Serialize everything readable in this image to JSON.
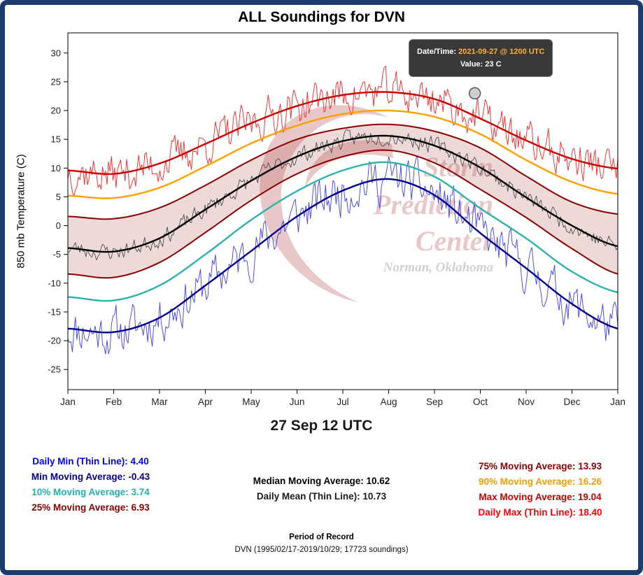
{
  "page": {
    "title": "ALL Soundings for DVN",
    "subtitle": "27 Sep 12 UTC",
    "footer": {
      "heading": "Period of Record",
      "detail": "DVN (1995/02/17-2019/10/29; 17723 soundings)"
    },
    "border_color": "#1d3c6e"
  },
  "tooltip": {
    "datetime_label": "Date/Time:",
    "datetime_value": "2021-09-27 @ 1200 UTC",
    "value_label": "Value:",
    "value_value": "23 C",
    "accent_color": "#ffaf3c",
    "background_color": "#2a2a2a"
  },
  "watermark": {
    "line1": "Storm",
    "line2": "Prediction",
    "line3": "Center",
    "line4": "Norman, Oklahoma"
  },
  "legend": {
    "left": [
      {
        "label": "Daily Min (Thin Line):",
        "value": "4.40",
        "color": "#0000ff"
      },
      {
        "label": "Min Moving Average:",
        "value": "-0.43",
        "color": "#00008b"
      },
      {
        "label": "10% Moving Average:",
        "value": "3.74",
        "color": "#20b2aa"
      },
      {
        "label": "25% Moving Average:",
        "value": "6.93",
        "color": "#8b0000"
      }
    ],
    "center": [
      {
        "label": "Median Moving Average:",
        "value": "10.62",
        "color": "#000000"
      },
      {
        "label": "Daily Mean (Thin Line):",
        "value": "10.73",
        "color": "#1a1a1a"
      }
    ],
    "right": [
      {
        "label": "75% Moving Average:",
        "value": "13.93",
        "color": "#8b0000"
      },
      {
        "label": "90% Moving Average:",
        "value": "16.26",
        "color": "#f29d00"
      },
      {
        "label": "Max Moving Average:",
        "value": "19.04",
        "color": "#cc0000"
      },
      {
        "label": "Daily Max (Thin Line):",
        "value": "18.40",
        "color": "#ff0000"
      }
    ]
  },
  "chart_data": {
    "type": "line",
    "title": "ALL Soundings for DVN",
    "xlabel": "",
    "ylabel": "850 mb Temperature (C)",
    "x_tick_labels": [
      "Jan",
      "Feb",
      "Mar",
      "Apr",
      "May",
      "Jun",
      "Jul",
      "Aug",
      "Sep",
      "Oct",
      "Nov",
      "Dec",
      "Jan"
    ],
    "y_ticks": [
      -25,
      -20,
      -15,
      -10,
      -5,
      0,
      5,
      10,
      15,
      20,
      25,
      30
    ],
    "ylim": [
      -28.5,
      33.5
    ],
    "grid": false,
    "legend_position": "bottom",
    "band": {
      "upper": "75% Moving Average",
      "lower": "25% Moving Average",
      "fill": "#8b0000",
      "opacity": 0.15
    },
    "marker": {
      "date": "2021-09-27 @ 1200 UTC",
      "value_c": 23,
      "month_position": 8.88
    },
    "series": [
      {
        "name": "Daily Min (Thin Line)",
        "style": "daily",
        "base": "Min Moving Average",
        "color": "#3b3bff",
        "width": 0.9,
        "seed": 11,
        "noise_amp": 3.4,
        "phi": 0.5,
        "value_at_cursor": 4.4
      },
      {
        "name": "Daily Mean (Thin Line)",
        "style": "daily",
        "base": "Median Moving Average",
        "color": "#4d4d4d",
        "width": 0.9,
        "seed": 23,
        "noise_amp": 1.3,
        "phi": 0.45,
        "value_at_cursor": 10.73
      },
      {
        "name": "Daily Max (Thin Line)",
        "style": "daily",
        "base": "Max Moving Average",
        "color": "#ff2020",
        "width": 0.9,
        "seed": 37,
        "noise_amp": 3.0,
        "phi": 0.45,
        "value_at_cursor": 18.4
      },
      {
        "name": "Min Moving Average",
        "style": "smooth",
        "color": "#00008b",
        "width": 2.4,
        "value_at_cursor": -0.43,
        "monthly_values": [
          -17.9,
          -18.5,
          -16.0,
          -10.4,
          -4.4,
          1.6,
          6.1,
          8.1,
          5.3,
          -1.3,
          -7.4,
          -13.6,
          -17.9
        ]
      },
      {
        "name": "10% Moving Average",
        "style": "smooth",
        "color": "#2bb3a8",
        "width": 2.4,
        "value_at_cursor": 3.74,
        "monthly_values": [
          -12.4,
          -13.0,
          -10.4,
          -5.0,
          1.0,
          6.0,
          9.6,
          11.0,
          8.5,
          3.0,
          -2.2,
          -8.0,
          -11.6
        ]
      },
      {
        "name": "25% Moving Average",
        "style": "smooth",
        "color": "#8b0000",
        "width": 2.0,
        "value_at_cursor": 6.93,
        "monthly_values": [
          -8.4,
          -9.0,
          -6.4,
          -1.2,
          4.4,
          9.0,
          12.0,
          13.1,
          10.9,
          6.3,
          1.4,
          -4.0,
          -8.4
        ]
      },
      {
        "name": "Median Moving Average",
        "style": "smooth",
        "color": "#000000",
        "width": 2.4,
        "value_at_cursor": 10.62,
        "monthly_values": [
          -3.9,
          -4.5,
          -2.2,
          2.8,
          7.8,
          12.0,
          14.7,
          15.6,
          13.9,
          10.1,
          4.9,
          0.0,
          -3.6
        ]
      },
      {
        "name": "75% Moving Average",
        "style": "smooth",
        "color": "#8b0000",
        "width": 2.0,
        "value_at_cursor": 13.93,
        "monthly_values": [
          1.6,
          1.2,
          3.1,
          7.0,
          11.4,
          15.0,
          16.9,
          17.6,
          16.4,
          13.5,
          8.6,
          4.1,
          2.0
        ]
      },
      {
        "name": "90% Moving Average",
        "style": "smooth",
        "color": "#ff9f00",
        "width": 2.4,
        "value_at_cursor": 16.26,
        "monthly_values": [
          5.2,
          4.8,
          6.6,
          10.3,
          14.3,
          17.4,
          19.4,
          20.0,
          18.9,
          15.9,
          11.4,
          7.6,
          5.5
        ]
      },
      {
        "name": "Max Moving Average",
        "style": "smooth",
        "color": "#cc0000",
        "width": 2.4,
        "value_at_cursor": 19.04,
        "monthly_values": [
          9.6,
          9.0,
          10.8,
          14.2,
          17.8,
          20.8,
          22.7,
          23.2,
          22.0,
          18.6,
          14.8,
          11.6,
          9.9
        ]
      }
    ]
  }
}
